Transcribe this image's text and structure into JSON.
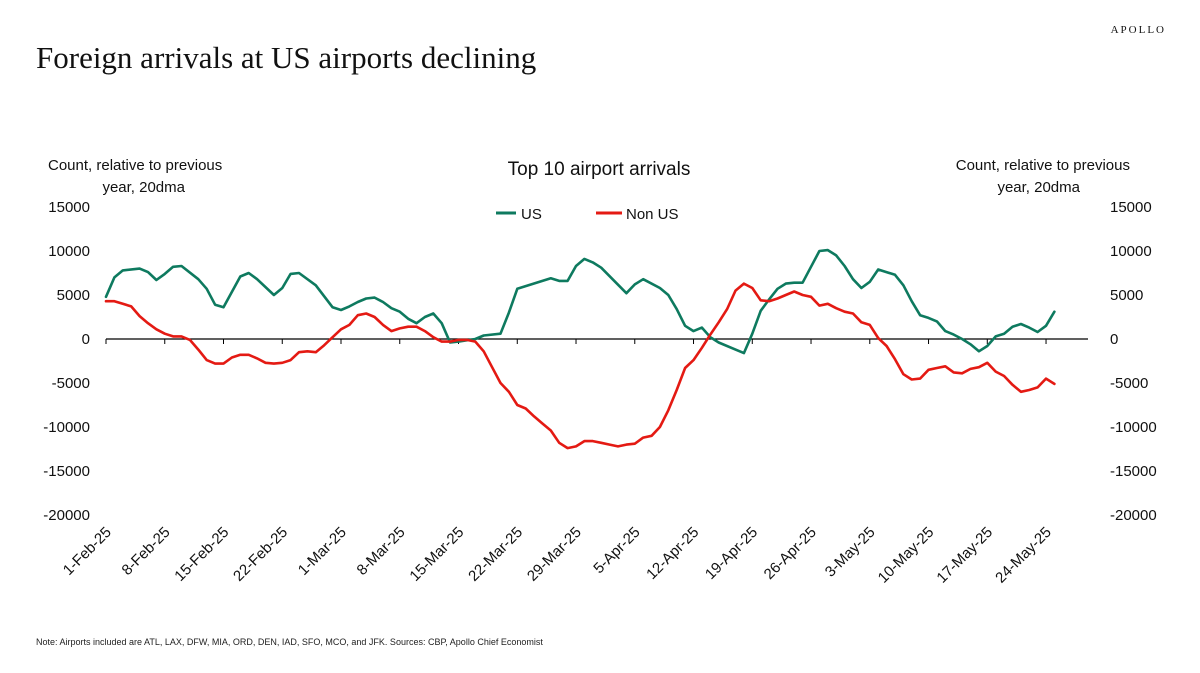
{
  "brand": "APOLLO",
  "headline": "Foreign arrivals at US airports declining",
  "note": "Note: Airports included are ATL, LAX, DFW, MIA, ORD, DEN, IAD, SFO, MCO, and JFK. Sources: CBP, Apollo Chief Economist",
  "colors": {
    "us": "#0e7a5f",
    "non_us": "#e41a13"
  },
  "chart_data": {
    "type": "line",
    "title": "Top 10 airport arrivals",
    "ylabel_left": [
      "Count, relative to previous",
      "year, 20dma"
    ],
    "ylabel_right": [
      "Count, relative to previous",
      "year, 20dma"
    ],
    "ylim": [
      -20000,
      15000
    ],
    "yticks": [
      15000,
      10000,
      5000,
      0,
      -5000,
      -10000,
      -15000,
      -20000
    ],
    "x_start": "2025-02-01",
    "n_days": 118,
    "xtick_labels": [
      "1-Feb-25",
      "8-Feb-25",
      "15-Feb-25",
      "22-Feb-25",
      "1-Mar-25",
      "8-Mar-25",
      "15-Mar-25",
      "22-Mar-25",
      "29-Mar-25",
      "5-Apr-25",
      "12-Apr-25",
      "19-Apr-25",
      "26-Apr-25",
      "3-May-25",
      "10-May-25",
      "17-May-25",
      "24-May-25"
    ],
    "xtick_days": [
      0,
      7,
      14,
      21,
      28,
      35,
      42,
      49,
      56,
      63,
      70,
      77,
      84,
      91,
      98,
      105,
      112
    ],
    "legend": [
      "US",
      "Non US"
    ],
    "series": [
      {
        "name": "US",
        "color": "#0e7a5f",
        "points": [
          [
            0,
            4800
          ],
          [
            1,
            7000
          ],
          [
            2,
            7800
          ],
          [
            4,
            8000
          ],
          [
            5,
            7600
          ],
          [
            6,
            6700
          ],
          [
            7,
            7400
          ],
          [
            8,
            8200
          ],
          [
            9,
            8300
          ],
          [
            11,
            6800
          ],
          [
            12,
            5700
          ],
          [
            13,
            3900
          ],
          [
            14,
            3600
          ],
          [
            16,
            7100
          ],
          [
            17,
            7500
          ],
          [
            18,
            6800
          ],
          [
            20,
            5000
          ],
          [
            21,
            5800
          ],
          [
            22,
            7400
          ],
          [
            23,
            7500
          ],
          [
            25,
            6100
          ],
          [
            27,
            3600
          ],
          [
            28,
            3300
          ],
          [
            29,
            3700
          ],
          [
            30,
            4200
          ],
          [
            31,
            4600
          ],
          [
            32,
            4700
          ],
          [
            33,
            4200
          ],
          [
            34,
            3500
          ],
          [
            35,
            3100
          ],
          [
            36,
            2300
          ],
          [
            37,
            1800
          ],
          [
            38,
            2500
          ],
          [
            39,
            2900
          ],
          [
            40,
            1800
          ],
          [
            41,
            -400
          ],
          [
            42,
            -300
          ],
          [
            44,
            0
          ],
          [
            45,
            400
          ],
          [
            47,
            600
          ],
          [
            48,
            3000
          ],
          [
            49,
            5700
          ],
          [
            53,
            6900
          ],
          [
            54,
            6600
          ],
          [
            55,
            6600
          ],
          [
            56,
            8300
          ],
          [
            57,
            9100
          ],
          [
            58,
            8700
          ],
          [
            59,
            8100
          ],
          [
            62,
            5200
          ],
          [
            63,
            6200
          ],
          [
            64,
            6800
          ],
          [
            66,
            5800
          ],
          [
            67,
            5000
          ],
          [
            68,
            3400
          ],
          [
            69,
            1500
          ],
          [
            70,
            900
          ],
          [
            71,
            1300
          ],
          [
            72,
            200
          ],
          [
            73,
            -400
          ],
          [
            75,
            -1200
          ],
          [
            76,
            -1600
          ],
          [
            77,
            600
          ],
          [
            78,
            3200
          ],
          [
            79,
            4500
          ],
          [
            80,
            5700
          ],
          [
            81,
            6300
          ],
          [
            82,
            6400
          ],
          [
            83,
            6400
          ],
          [
            84,
            8200
          ],
          [
            85,
            10000
          ],
          [
            86,
            10100
          ],
          [
            87,
            9500
          ],
          [
            88,
            8300
          ],
          [
            89,
            6800
          ],
          [
            90,
            5800
          ],
          [
            91,
            6500
          ],
          [
            92,
            7900
          ],
          [
            94,
            7300
          ],
          [
            95,
            6100
          ],
          [
            96,
            4300
          ],
          [
            97,
            2700
          ],
          [
            98,
            2400
          ],
          [
            99,
            2000
          ],
          [
            100,
            900
          ],
          [
            101,
            500
          ],
          [
            102,
            0
          ],
          [
            103,
            -600
          ],
          [
            104,
            -1400
          ],
          [
            105,
            -800
          ],
          [
            106,
            300
          ],
          [
            107,
            600
          ],
          [
            108,
            1400
          ],
          [
            109,
            1700
          ],
          [
            110,
            1300
          ],
          [
            111,
            800
          ],
          [
            112,
            1500
          ],
          [
            113,
            3100
          ]
        ]
      },
      {
        "name": "Non US",
        "color": "#e41a13",
        "points": [
          [
            0,
            4300
          ],
          [
            1,
            4300
          ],
          [
            2,
            4000
          ],
          [
            3,
            3700
          ],
          [
            4,
            2600
          ],
          [
            5,
            1800
          ],
          [
            6,
            1100
          ],
          [
            7,
            600
          ],
          [
            8,
            300
          ],
          [
            9,
            300
          ],
          [
            10,
            -100
          ],
          [
            11,
            -1200
          ],
          [
            12,
            -2400
          ],
          [
            13,
            -2800
          ],
          [
            14,
            -2800
          ],
          [
            15,
            -2100
          ],
          [
            16,
            -1800
          ],
          [
            17,
            -1800
          ],
          [
            18,
            -2200
          ],
          [
            19,
            -2700
          ],
          [
            20,
            -2800
          ],
          [
            21,
            -2700
          ],
          [
            22,
            -2400
          ],
          [
            23,
            -1500
          ],
          [
            24,
            -1400
          ],
          [
            25,
            -1500
          ],
          [
            26,
            -700
          ],
          [
            27,
            200
          ],
          [
            28,
            1100
          ],
          [
            29,
            1600
          ],
          [
            30,
            2700
          ],
          [
            31,
            2900
          ],
          [
            32,
            2500
          ],
          [
            33,
            1600
          ],
          [
            34,
            900
          ],
          [
            35,
            1200
          ],
          [
            36,
            1400
          ],
          [
            37,
            1400
          ],
          [
            38,
            900
          ],
          [
            39,
            200
          ],
          [
            40,
            -300
          ],
          [
            41,
            -300
          ],
          [
            42,
            -100
          ],
          [
            43,
            -100
          ],
          [
            44,
            -300
          ],
          [
            45,
            -1400
          ],
          [
            46,
            -3200
          ],
          [
            47,
            -5000
          ],
          [
            48,
            -6000
          ],
          [
            49,
            -7500
          ],
          [
            50,
            -7900
          ],
          [
            51,
            -8800
          ],
          [
            52,
            -9600
          ],
          [
            53,
            -10400
          ],
          [
            54,
            -11800
          ],
          [
            55,
            -12400
          ],
          [
            56,
            -12200
          ],
          [
            57,
            -11600
          ],
          [
            58,
            -11600
          ],
          [
            59,
            -11800
          ],
          [
            60,
            -12000
          ],
          [
            61,
            -12200
          ],
          [
            62,
            -12000
          ],
          [
            63,
            -11900
          ],
          [
            64,
            -11200
          ],
          [
            65,
            -11000
          ],
          [
            66,
            -10000
          ],
          [
            67,
            -8100
          ],
          [
            68,
            -5800
          ],
          [
            69,
            -3300
          ],
          [
            70,
            -2400
          ],
          [
            71,
            -1000
          ],
          [
            72,
            500
          ],
          [
            73,
            1900
          ],
          [
            74,
            3400
          ],
          [
            75,
            5500
          ],
          [
            76,
            6300
          ],
          [
            77,
            5800
          ],
          [
            78,
            4400
          ],
          [
            79,
            4300
          ],
          [
            80,
            4600
          ],
          [
            81,
            5000
          ],
          [
            82,
            5400
          ],
          [
            83,
            5000
          ],
          [
            84,
            4800
          ],
          [
            85,
            3800
          ],
          [
            86,
            4000
          ],
          [
            87,
            3500
          ],
          [
            88,
            3100
          ],
          [
            89,
            2900
          ],
          [
            90,
            1900
          ],
          [
            91,
            1600
          ],
          [
            92,
            100
          ],
          [
            93,
            -800
          ],
          [
            94,
            -2300
          ],
          [
            95,
            -4000
          ],
          [
            96,
            -4600
          ],
          [
            97,
            -4500
          ],
          [
            98,
            -3500
          ],
          [
            99,
            -3300
          ],
          [
            100,
            -3100
          ],
          [
            101,
            -3800
          ],
          [
            102,
            -3900
          ],
          [
            103,
            -3400
          ],
          [
            104,
            -3200
          ],
          [
            105,
            -2700
          ],
          [
            106,
            -3700
          ],
          [
            107,
            -4200
          ],
          [
            108,
            -5200
          ],
          [
            109,
            -6000
          ],
          [
            110,
            -5800
          ],
          [
            111,
            -5500
          ],
          [
            112,
            -4500
          ],
          [
            113,
            -5100
          ]
        ]
      }
    ]
  }
}
